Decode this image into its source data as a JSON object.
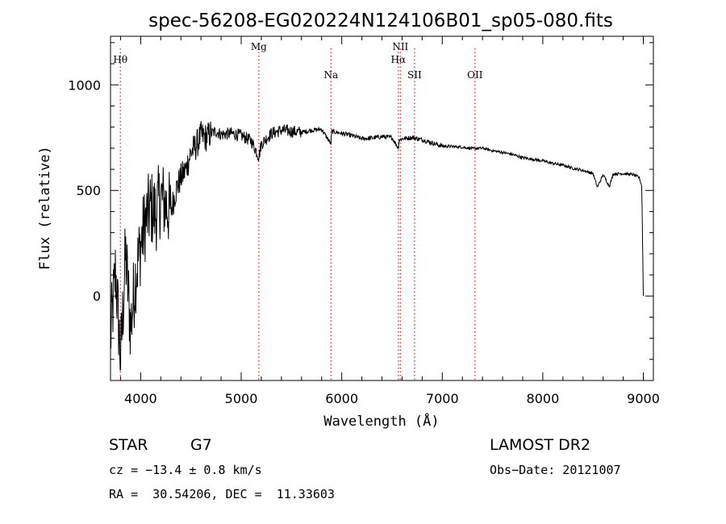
{
  "chart_data": {
    "type": "line",
    "title": "spec-56208-EG020224N124106B01_sp05-080.fits",
    "xlabel": "Wavelength (Å)",
    "ylabel": "Flux (relative)",
    "xlim": [
      3700,
      9100
    ],
    "ylim": [
      -400,
      1230
    ],
    "x_ticks": [
      4000,
      5000,
      6000,
      7000,
      8000,
      9000
    ],
    "y_ticks": [
      0,
      500,
      1000
    ],
    "grid": false,
    "line_color": "#000000",
    "marker_color": "#d62020",
    "lines": [
      {
        "label": "Hθ",
        "wavelength": 3798,
        "row": 1
      },
      {
        "label": "Mg",
        "wavelength": 5175,
        "row": 0
      },
      {
        "label": "Na",
        "wavelength": 5893,
        "row": 2
      },
      {
        "label": "NII",
        "wavelength": 6583,
        "row": 0
      },
      {
        "label": "Hα",
        "wavelength": 6563,
        "row": 1
      },
      {
        "label": "SII",
        "wavelength": 6724,
        "row": 2
      },
      {
        "label": "OII",
        "wavelength": 7325,
        "row": 2
      }
    ],
    "series": [
      {
        "x": [
          3700,
          3750,
          3800,
          3850,
          3900,
          3950,
          4000,
          4050,
          4100,
          4150,
          4200,
          4250,
          4300,
          4350,
          4400,
          4450,
          4500,
          4550,
          4600,
          4650,
          4700,
          4750,
          4800,
          4900,
          5000,
          5100,
          5175,
          5200,
          5300,
          5400,
          5500,
          5600,
          5700,
          5800,
          5893,
          5900,
          6000,
          6100,
          6200,
          6300,
          6400,
          6500,
          6563,
          6570,
          6600,
          6700,
          6800,
          6900,
          7000,
          7100,
          7200,
          7300,
          7400,
          7500,
          7600,
          7700,
          7800,
          7900,
          8000,
          8100,
          8200,
          8300,
          8400,
          8500,
          8542,
          8600,
          8662,
          8700,
          8800,
          8900,
          8960,
          8985,
          9000
        ],
        "y": [
          -200,
          120,
          -300,
          200,
          -150,
          100,
          240,
          360,
          420,
          390,
          470,
          430,
          400,
          500,
          560,
          600,
          680,
          710,
          760,
          750,
          770,
          780,
          765,
          770,
          760,
          735,
          660,
          720,
          770,
          785,
          780,
          775,
          785,
          790,
          720,
          780,
          770,
          760,
          745,
          748,
          755,
          750,
          700,
          738,
          745,
          750,
          740,
          725,
          710,
          708,
          705,
          698,
          700,
          688,
          680,
          670,
          655,
          648,
          640,
          628,
          620,
          605,
          595,
          580,
          515,
          575,
          520,
          578,
          580,
          575,
          560,
          520,
          0
        ]
      }
    ]
  },
  "footer": {
    "object_class": "STAR",
    "subclass": "G7",
    "cz": "cz = −13.4 ± 0.8 km/s",
    "radec": "RA =  30.54206, DEC =  11.33603",
    "survey": "LAMOST DR2",
    "obs_date": "Obs−Date: 20121007"
  }
}
